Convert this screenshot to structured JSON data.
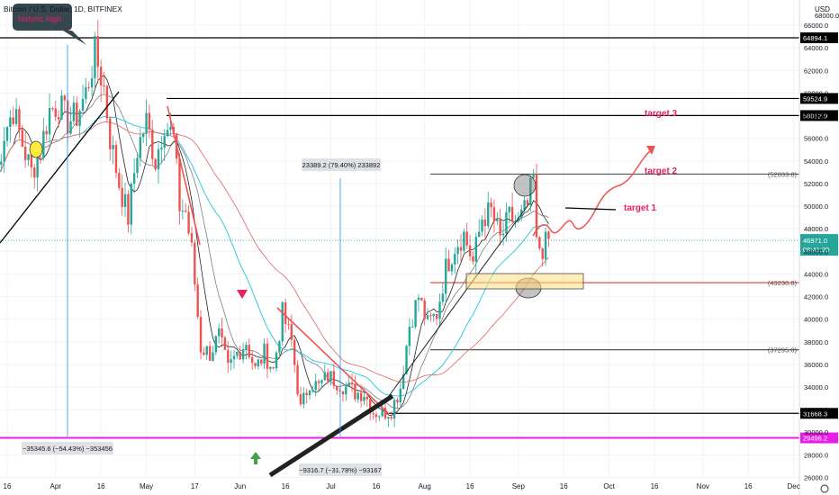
{
  "header": {
    "symbol": "Bitcoin / U.S. Dollar, 1D, BITFINEX",
    "currency": "USD"
  },
  "chart_data": {
    "type": "candlestick",
    "symbol": "Bitcoin / U.S. Dollar, 1D, BITFINEX",
    "ylim": [
      25400,
      67600
    ],
    "y_ticks": [
      26000,
      28000,
      30000,
      32000,
      34000,
      36000,
      38000,
      40000,
      42000,
      44000,
      46000,
      48000,
      50000,
      52000,
      54000,
      56000,
      58000,
      60000,
      62000,
      64000,
      66000
    ],
    "y_tick_labels": [
      "26000.0",
      "28000.0",
      "30000.0",
      "32000.0",
      "34000.0",
      "36000.0",
      "38000.0",
      "40000.0",
      "42000.0",
      "44000.0",
      "46000.0",
      "48000.0",
      "50000.0",
      "52000.0",
      "54000.0",
      "56000.0",
      "58000.0",
      "60000.0",
      "62000.0",
      "64000.0",
      "66000.0"
    ],
    "x_ticks": [
      {
        "label": "16",
        "date": "2021-03-16"
      },
      {
        "label": "Apr",
        "date": "2021-04-01"
      },
      {
        "label": "16",
        "date": "2021-04-16"
      },
      {
        "label": "May",
        "date": "2021-05-01"
      },
      {
        "label": "17",
        "date": "2021-05-17"
      },
      {
        "label": "Jun",
        "date": "2021-06-01"
      },
      {
        "label": "16",
        "date": "2021-06-16"
      },
      {
        "label": "Jul",
        "date": "2021-07-01"
      },
      {
        "label": "16",
        "date": "2021-07-16"
      },
      {
        "label": "Aug",
        "date": "2021-08-01"
      },
      {
        "label": "16",
        "date": "2021-08-16"
      },
      {
        "label": "Sep",
        "date": "2021-09-01"
      },
      {
        "label": "16",
        "date": "2021-09-16"
      },
      {
        "label": "Oct",
        "date": "2021-10-01"
      },
      {
        "label": "16",
        "date": "2021-10-16"
      },
      {
        "label": "Nov",
        "date": "2021-11-01"
      },
      {
        "label": "16",
        "date": "2021-11-16"
      },
      {
        "label": "Dec",
        "date": "2021-12-01"
      }
    ],
    "price_series": [
      [
        "2021-03-12",
        52000
      ],
      [
        "2021-03-15",
        56500
      ],
      [
        "2021-03-18",
        58500
      ],
      [
        "2021-03-21",
        55500
      ],
      [
        "2021-03-24",
        53000
      ],
      [
        "2021-03-27",
        55000
      ],
      [
        "2021-03-30",
        58500
      ],
      [
        "2021-04-02",
        59000
      ],
      [
        "2021-04-05",
        57500
      ],
      [
        "2021-04-08",
        58000
      ],
      [
        "2021-04-11",
        60000
      ],
      [
        "2021-04-14",
        63500
      ],
      [
        "2021-04-17",
        60500
      ],
      [
        "2021-04-19",
        56000
      ],
      [
        "2021-04-22",
        52000
      ],
      [
        "2021-04-25",
        49000
      ],
      [
        "2021-04-28",
        55000
      ],
      [
        "2021-05-01",
        57500
      ],
      [
        "2021-05-04",
        54000
      ],
      [
        "2021-05-07",
        57500
      ],
      [
        "2021-05-10",
        56000
      ],
      [
        "2021-05-12",
        50000
      ],
      [
        "2021-05-14",
        49500
      ],
      [
        "2021-05-16",
        46000
      ],
      [
        "2021-05-19",
        37500
      ],
      [
        "2021-05-22",
        37000
      ],
      [
        "2021-05-25",
        38500
      ],
      [
        "2021-05-28",
        35500
      ],
      [
        "2021-05-31",
        37000
      ],
      [
        "2021-06-03",
        38000
      ],
      [
        "2021-06-06",
        35500
      ],
      [
        "2021-06-09",
        37000
      ],
      [
        "2021-06-12",
        35500
      ],
      [
        "2021-06-15",
        40500
      ],
      [
        "2021-06-18",
        38000
      ],
      [
        "2021-06-21",
        32000
      ],
      [
        "2021-06-24",
        34500
      ],
      [
        "2021-06-27",
        34000
      ],
      [
        "2021-06-30",
        35000
      ],
      [
        "2021-07-03",
        34500
      ],
      [
        "2021-07-06",
        34000
      ],
      [
        "2021-07-09",
        33500
      ],
      [
        "2021-07-12",
        33500
      ],
      [
        "2021-07-15",
        31800
      ],
      [
        "2021-07-18",
        31700
      ],
      [
        "2021-07-21",
        32000
      ],
      [
        "2021-07-24",
        34000
      ],
      [
        "2021-07-27",
        39500
      ],
      [
        "2021-07-30",
        42000
      ],
      [
        "2021-08-02",
        39500
      ],
      [
        "2021-08-05",
        40500
      ],
      [
        "2021-08-08",
        44500
      ],
      [
        "2021-08-11",
        46500
      ],
      [
        "2021-08-14",
        47500
      ],
      [
        "2021-08-17",
        45000
      ],
      [
        "2021-08-20",
        49000
      ],
      [
        "2021-08-23",
        49500
      ],
      [
        "2021-08-26",
        47000
      ],
      [
        "2021-08-29",
        49000
      ],
      [
        "2021-09-01",
        48500
      ],
      [
        "2021-09-04",
        50000
      ],
      [
        "2021-09-06",
        52500
      ],
      [
        "2021-09-07",
        46500
      ],
      [
        "2021-09-09",
        46300
      ],
      [
        "2021-09-11",
        46971
      ]
    ],
    "horizontal_levels": [
      {
        "price": 64894.1,
        "label": "64894.1",
        "color": "#000000"
      },
      {
        "price": 59524.9,
        "label": "59524.9",
        "color": "#000000"
      },
      {
        "price": 58012.9,
        "label": "58012.9",
        "color": "#000000"
      },
      {
        "price": 52833.8,
        "label": "(52833.8)",
        "color": "#555555"
      },
      {
        "price": 43230.8,
        "label": "(43230.8)",
        "color": "#e53935"
      },
      {
        "price": 37295.0,
        "label": "(37295.0)",
        "color": "#555555"
      },
      {
        "price": 31668.3,
        "label": "31668.3",
        "color": "#000000"
      },
      {
        "price": 29496.2,
        "label": "29496.2",
        "color": "#e81ee8"
      }
    ],
    "current_price": {
      "value": "46971.0",
      "countdown": "08:41:20",
      "price": 46971
    },
    "annotations": {
      "historic_high": "historic high",
      "target_1": "target 1",
      "target_2": "target 2",
      "target_3": "target 3",
      "measure_up": "23389.2 (79.40%) 233892",
      "measure_down": "−35345.6 (−54.43%) −353456",
      "measure_down_2": "−9316.7 (−31.78%) −93167"
    },
    "colors": {
      "up": "#26a69a",
      "down": "#ef5350",
      "support": "#e53935",
      "key_level": "#e81ee8",
      "target": "#e91e63",
      "measure": "#2196f3"
    }
  }
}
